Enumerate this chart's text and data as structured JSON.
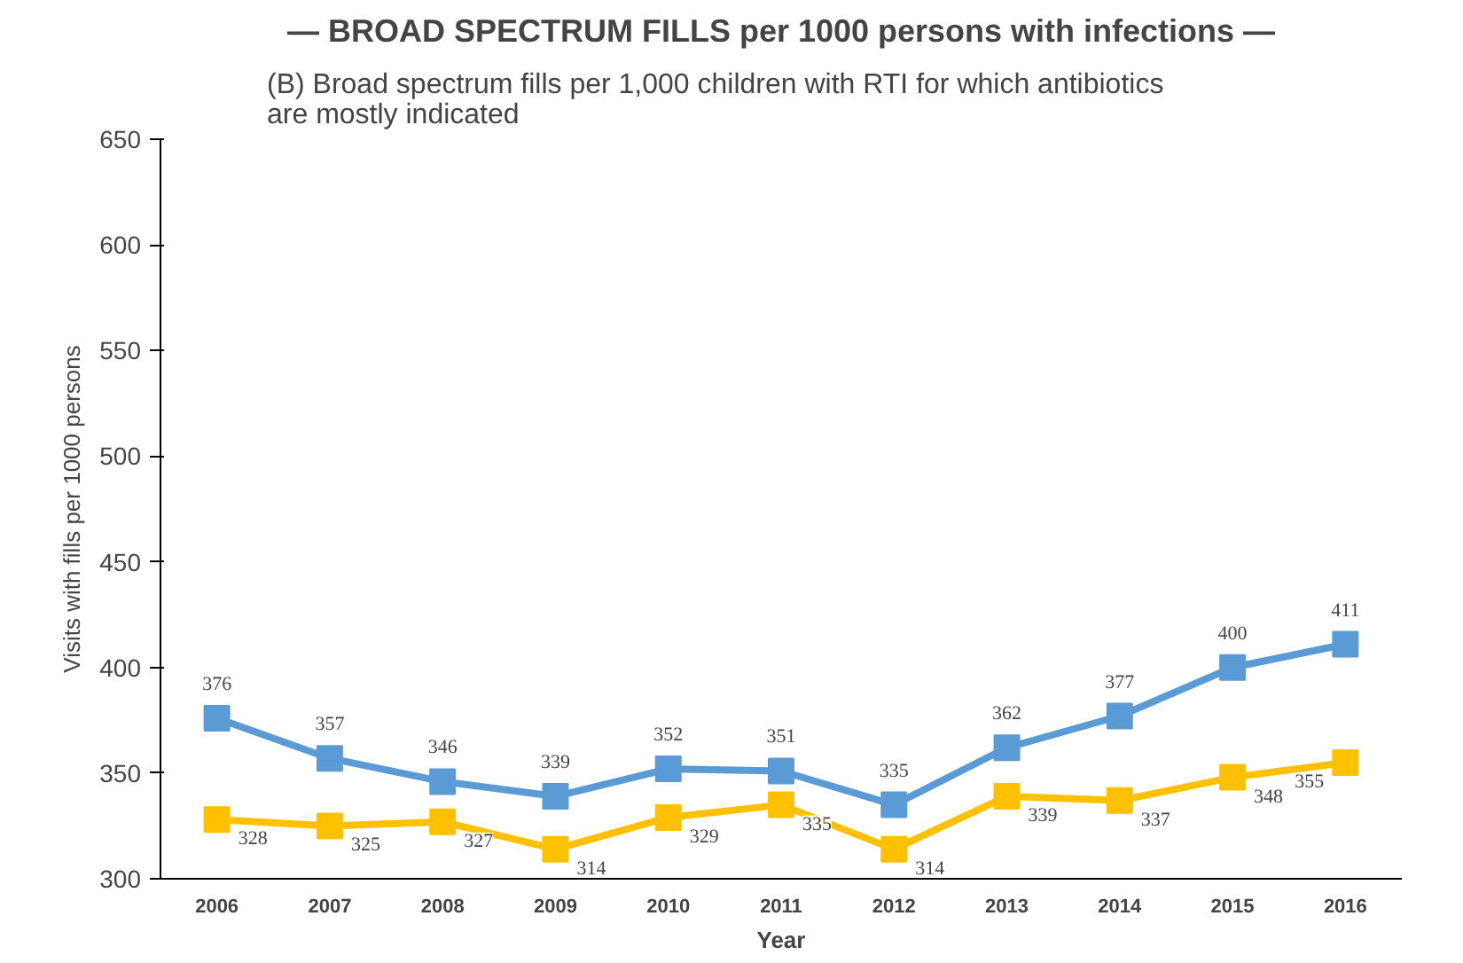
{
  "chart_data": {
    "type": "line",
    "title": "— BROAD SPECTRUM FILLS per 1000 persons with infections —",
    "subtitle": "(B) Broad spectrum fills per 1,000 children with RTI for which antibiotics\nare mostly indicated",
    "xlabel": "Year",
    "ylabel": "Visits with fills per 1000 persons",
    "categories": [
      "2006",
      "2007",
      "2008",
      "2009",
      "2010",
      "2011",
      "2012",
      "2013",
      "2014",
      "2015",
      "2016"
    ],
    "series": [
      {
        "color": "#5b9bd5",
        "values": [
          376,
          357,
          346,
          339,
          352,
          351,
          335,
          362,
          377,
          400,
          411
        ]
      },
      {
        "color": "#ffc000",
        "values": [
          328,
          325,
          327,
          314,
          329,
          335,
          314,
          339,
          337,
          348,
          355
        ]
      }
    ],
    "ylim": [
      300,
      650
    ],
    "yticks": [
      300,
      350,
      400,
      450,
      500,
      550,
      600,
      650
    ],
    "grid": false,
    "marker": "square",
    "line_style": "solid",
    "data_labels": true
  }
}
